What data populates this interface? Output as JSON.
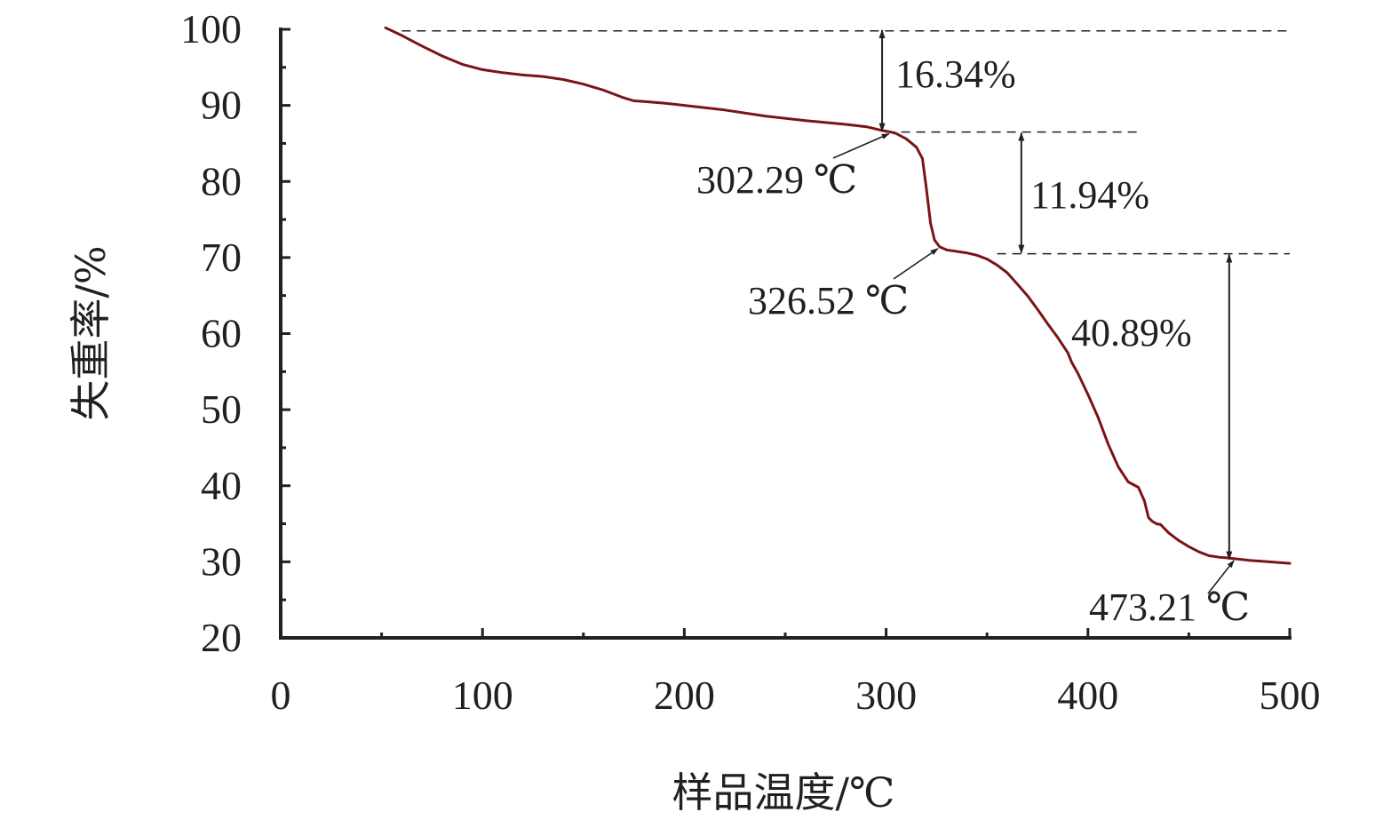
{
  "chart_data": {
    "type": "line",
    "xlabel": "样品温度/℃",
    "ylabel": "失重率/%",
    "xlim": [
      0,
      500
    ],
    "ylim": [
      20,
      100
    ],
    "xticks": [
      0,
      100,
      200,
      300,
      400,
      500
    ],
    "yticks": [
      20,
      30,
      40,
      50,
      60,
      70,
      80,
      90,
      100
    ],
    "grid": false,
    "series_color": "#7a1416",
    "series": [
      {
        "x": [
          52,
          60,
          70,
          80,
          90,
          100,
          110,
          120,
          130,
          140,
          150,
          160,
          170,
          175,
          180,
          190,
          200,
          220,
          240,
          260,
          280,
          290,
          295,
          298,
          302.29,
          305,
          310,
          315,
          318,
          320,
          322,
          324,
          326.52,
          330,
          335,
          340,
          345,
          350,
          355,
          360,
          365,
          370,
          375,
          380,
          385,
          390,
          392,
          395,
          400,
          405,
          410,
          415,
          420,
          425,
          428,
          430,
          432,
          434,
          436,
          440,
          445,
          450,
          455,
          460,
          465,
          470,
          473.21,
          480,
          490,
          500
        ],
        "y": [
          100.2,
          99.2,
          97.8,
          96.5,
          95.4,
          94.7,
          94.3,
          94.0,
          93.8,
          93.4,
          92.8,
          92.0,
          91.0,
          90.6,
          90.5,
          90.3,
          90.0,
          89.4,
          88.6,
          88.0,
          87.5,
          87.2,
          86.9,
          86.7,
          86.5,
          86.3,
          85.6,
          84.5,
          83.0,
          79.0,
          74.5,
          72.3,
          71.4,
          71.0,
          70.8,
          70.6,
          70.3,
          69.8,
          69.0,
          68.0,
          66.5,
          65.0,
          63.2,
          61.3,
          59.5,
          57.5,
          56.2,
          54.8,
          52.0,
          49.0,
          45.5,
          42.5,
          40.5,
          39.8,
          38.0,
          35.8,
          35.3,
          35.0,
          34.9,
          33.8,
          32.8,
          32.0,
          31.3,
          30.8,
          30.6,
          30.5,
          30.4,
          30.2,
          30.0,
          29.8
        ]
      }
    ],
    "reference_levels": [
      99.8,
      86.5,
      70.5
    ],
    "annotations": [
      {
        "text": "16.34%",
        "x": 298,
        "y_from": 100,
        "y_to": 86.5,
        "arrow_x": 298
      },
      {
        "text": "11.94%",
        "x": 367,
        "y_from": 86.5,
        "y_to": 70.5,
        "arrow_x": 367
      },
      {
        "text": "40.89%",
        "x": 470,
        "y_from": 70.5,
        "y_to": 30.2,
        "arrow_x": 470
      },
      {
        "text": "302.29 ℃",
        "x": 302.29,
        "y": 86.5
      },
      {
        "text": "326.52 ℃",
        "x": 326.52,
        "y": 71.4
      },
      {
        "text": "473.21 ℃",
        "x": 473.21,
        "y": 30.4
      }
    ]
  }
}
